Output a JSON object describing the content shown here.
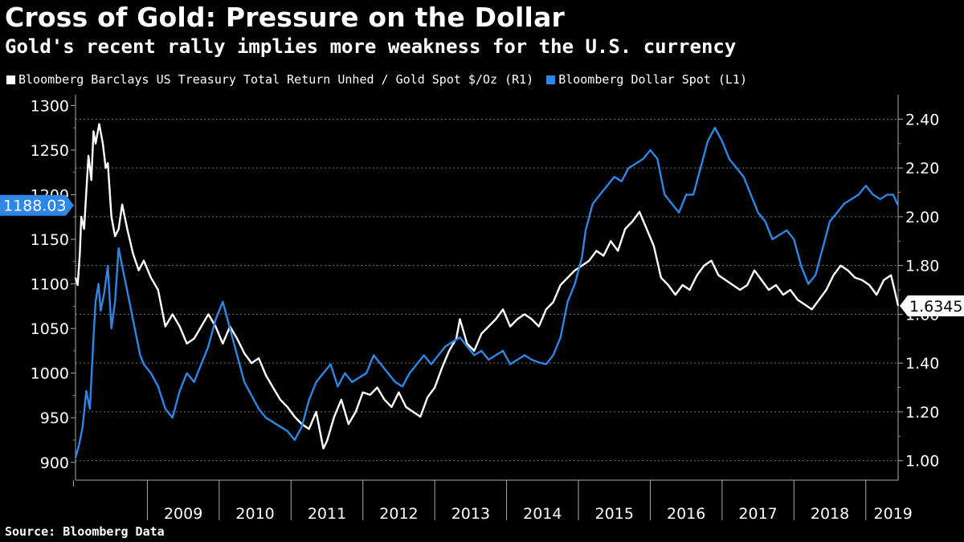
{
  "header": {
    "title": "Cross of Gold: Pressure on the Dollar",
    "subtitle": "Gold's recent rally implies more weakness for the U.S. currency"
  },
  "source": "Source: Bloomberg Data",
  "colors": {
    "background": "#000000",
    "white_series": "#ffffff",
    "blue_series": "#2e86e6",
    "grid": "#777777"
  },
  "chart_data": {
    "type": "line",
    "x_ticks": [
      "2009",
      "2010",
      "2011",
      "2012",
      "2013",
      "2014",
      "2015",
      "2016",
      "2017",
      "2018",
      "2019"
    ],
    "xlim": [
      2008.0,
      2019.45
    ],
    "left_axis": {
      "label": "L1",
      "ticks": [
        900,
        950,
        1000,
        1050,
        1100,
        1150,
        1200,
        1250,
        1300
      ],
      "ylim": [
        880,
        1312
      ]
    },
    "right_axis": {
      "label": "R1",
      "ticks": [
        "1.00",
        "1.20",
        "1.40",
        "1.60",
        "1.80",
        "2.00",
        "2.20",
        "2.40"
      ],
      "ylim": [
        0.92,
        2.5
      ]
    },
    "series": [
      {
        "name": "Bloomberg Barclays US Treasury Total Return Unhed / Gold Spot $/Oz (R1)",
        "axis": "right",
        "color": "#ffffff",
        "last_value_label": "1.6345",
        "x": [
          2008.0,
          2008.03,
          2008.06,
          2008.08,
          2008.12,
          2008.18,
          2008.22,
          2008.25,
          2008.28,
          2008.33,
          2008.38,
          2008.42,
          2008.45,
          2008.5,
          2008.55,
          2008.6,
          2008.65,
          2008.72,
          2008.8,
          2008.88,
          2008.95,
          2009.05,
          2009.15,
          2009.25,
          2009.35,
          2009.45,
          2009.55,
          2009.65,
          2009.75,
          2009.85,
          2009.95,
          2010.05,
          2010.15,
          2010.25,
          2010.35,
          2010.45,
          2010.55,
          2010.65,
          2010.75,
          2010.85,
          2010.95,
          2011.05,
          2011.15,
          2011.25,
          2011.35,
          2011.45,
          2011.5,
          2011.6,
          2011.7,
          2011.8,
          2011.9,
          2012.0,
          2012.1,
          2012.2,
          2012.3,
          2012.4,
          2012.5,
          2012.6,
          2012.7,
          2012.8,
          2012.9,
          2013.0,
          2013.1,
          2013.2,
          2013.3,
          2013.35,
          2013.45,
          2013.55,
          2013.65,
          2013.75,
          2013.85,
          2013.95,
          2014.05,
          2014.15,
          2014.25,
          2014.35,
          2014.45,
          2014.55,
          2014.65,
          2014.75,
          2014.85,
          2014.95,
          2015.05,
          2015.15,
          2015.25,
          2015.35,
          2015.45,
          2015.55,
          2015.65,
          2015.75,
          2015.85,
          2015.95,
          2016.05,
          2016.15,
          2016.25,
          2016.35,
          2016.45,
          2016.55,
          2016.65,
          2016.75,
          2016.85,
          2016.95,
          2017.05,
          2017.15,
          2017.25,
          2017.35,
          2017.45,
          2017.55,
          2017.65,
          2017.75,
          2017.85,
          2017.95,
          2018.05,
          2018.15,
          2018.25,
          2018.35,
          2018.45,
          2018.55,
          2018.65,
          2018.75,
          2018.85,
          2018.95,
          2019.05,
          2019.15,
          2019.25,
          2019.35,
          2019.4,
          2019.45
        ],
        "values": [
          1.75,
          1.72,
          1.85,
          2.0,
          1.95,
          2.25,
          2.15,
          2.35,
          2.3,
          2.38,
          2.3,
          2.2,
          2.22,
          2.0,
          1.92,
          1.95,
          2.05,
          1.95,
          1.85,
          1.78,
          1.82,
          1.75,
          1.7,
          1.55,
          1.6,
          1.55,
          1.48,
          1.5,
          1.55,
          1.6,
          1.55,
          1.48,
          1.55,
          1.5,
          1.44,
          1.4,
          1.42,
          1.35,
          1.3,
          1.25,
          1.22,
          1.18,
          1.15,
          1.13,
          1.2,
          1.05,
          1.08,
          1.18,
          1.25,
          1.15,
          1.2,
          1.28,
          1.27,
          1.3,
          1.25,
          1.22,
          1.28,
          1.22,
          1.2,
          1.18,
          1.26,
          1.3,
          1.38,
          1.45,
          1.5,
          1.58,
          1.48,
          1.45,
          1.52,
          1.55,
          1.58,
          1.62,
          1.55,
          1.58,
          1.6,
          1.58,
          1.55,
          1.62,
          1.65,
          1.72,
          1.75,
          1.78,
          1.8,
          1.82,
          1.86,
          1.84,
          1.9,
          1.86,
          1.95,
          1.98,
          2.02,
          1.95,
          1.88,
          1.75,
          1.72,
          1.68,
          1.72,
          1.7,
          1.76,
          1.8,
          1.82,
          1.76,
          1.74,
          1.72,
          1.7,
          1.72,
          1.78,
          1.74,
          1.7,
          1.72,
          1.68,
          1.7,
          1.66,
          1.64,
          1.62,
          1.66,
          1.7,
          1.76,
          1.8,
          1.78,
          1.75,
          1.74,
          1.72,
          1.68,
          1.74,
          1.76,
          1.7,
          1.6345
        ]
      },
      {
        "name": "Bloomberg Dollar Spot  (L1)",
        "axis": "left",
        "color": "#2e86e6",
        "last_value_label": "1188.03",
        "x": [
          2008.0,
          2008.05,
          2008.1,
          2008.15,
          2008.2,
          2008.25,
          2008.28,
          2008.32,
          2008.35,
          2008.4,
          2008.45,
          2008.5,
          2008.55,
          2008.6,
          2008.65,
          2008.7,
          2008.75,
          2008.8,
          2008.85,
          2008.9,
          2008.95,
          2009.05,
          2009.15,
          2009.25,
          2009.35,
          2009.45,
          2009.55,
          2009.65,
          2009.75,
          2009.85,
          2009.95,
          2010.05,
          2010.15,
          2010.25,
          2010.35,
          2010.45,
          2010.55,
          2010.65,
          2010.75,
          2010.85,
          2010.95,
          2011.05,
          2011.15,
          2011.25,
          2011.35,
          2011.45,
          2011.55,
          2011.65,
          2011.75,
          2011.85,
          2011.95,
          2012.05,
          2012.15,
          2012.25,
          2012.35,
          2012.45,
          2012.55,
          2012.65,
          2012.75,
          2012.85,
          2012.95,
          2013.05,
          2013.15,
          2013.25,
          2013.35,
          2013.45,
          2013.55,
          2013.65,
          2013.75,
          2013.85,
          2013.95,
          2014.05,
          2014.15,
          2014.25,
          2014.35,
          2014.45,
          2014.55,
          2014.65,
          2014.75,
          2014.85,
          2014.95,
          2015.05,
          2015.1,
          2015.15,
          2015.2,
          2015.3,
          2015.4,
          2015.5,
          2015.6,
          2015.7,
          2015.8,
          2015.9,
          2016.0,
          2016.1,
          2016.2,
          2016.3,
          2016.4,
          2016.5,
          2016.6,
          2016.7,
          2016.8,
          2016.9,
          2017.0,
          2017.1,
          2017.2,
          2017.3,
          2017.4,
          2017.5,
          2017.6,
          2017.7,
          2017.8,
          2017.9,
          2018.0,
          2018.1,
          2018.2,
          2018.3,
          2018.4,
          2018.5,
          2018.6,
          2018.7,
          2018.8,
          2018.9,
          2019.0,
          2019.1,
          2019.2,
          2019.3,
          2019.38,
          2019.45
        ],
        "values": [
          905,
          920,
          940,
          980,
          960,
          1040,
          1080,
          1100,
          1070,
          1090,
          1120,
          1050,
          1080,
          1140,
          1120,
          1100,
          1080,
          1060,
          1040,
          1020,
          1010,
          1000,
          985,
          960,
          950,
          980,
          1000,
          990,
          1010,
          1030,
          1060,
          1080,
          1050,
          1020,
          990,
          975,
          960,
          950,
          945,
          940,
          935,
          925,
          940,
          970,
          990,
          1000,
          1010,
          985,
          1000,
          990,
          995,
          1000,
          1020,
          1010,
          1000,
          990,
          985,
          1000,
          1010,
          1020,
          1010,
          1020,
          1030,
          1035,
          1040,
          1030,
          1020,
          1025,
          1015,
          1020,
          1025,
          1010,
          1015,
          1020,
          1015,
          1012,
          1010,
          1020,
          1040,
          1080,
          1100,
          1130,
          1160,
          1175,
          1190,
          1200,
          1210,
          1220,
          1215,
          1230,
          1235,
          1240,
          1250,
          1240,
          1200,
          1190,
          1180,
          1200,
          1200,
          1230,
          1260,
          1275,
          1260,
          1240,
          1230,
          1220,
          1200,
          1180,
          1170,
          1150,
          1155,
          1160,
          1150,
          1120,
          1100,
          1110,
          1140,
          1170,
          1180,
          1190,
          1195,
          1200,
          1210,
          1200,
          1195,
          1200,
          1200,
          1188.03
        ]
      }
    ]
  }
}
